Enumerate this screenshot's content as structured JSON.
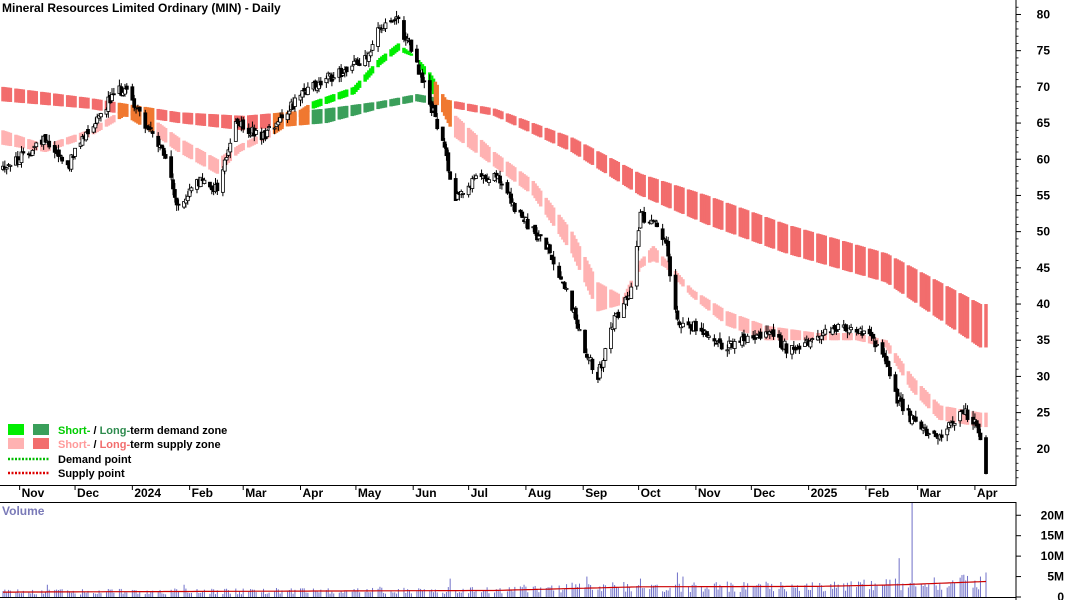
{
  "chart_data": {
    "type": "candlestick",
    "title": "Mineral Resources Limited Ordinary (MIN) - Daily",
    "y_ticks": [
      "80",
      "75",
      "70",
      "65",
      "60",
      "55",
      "50",
      "45",
      "40",
      "35",
      "30",
      "25",
      "20"
    ],
    "ylim": [
      15,
      82
    ],
    "x_labels": [
      "Nov",
      "Dec",
      "2024",
      "Feb",
      "Mar",
      "Apr",
      "May",
      "Jun",
      "Jul",
      "Aug",
      "Sep",
      "Oct",
      "Nov",
      "Dec",
      "2025",
      "Feb",
      "Mar",
      "Apr"
    ],
    "price_path": [
      [
        "2023-10-23",
        59
      ],
      [
        "2023-11-01",
        60
      ],
      [
        "2023-11-15",
        63
      ],
      [
        "2023-11-27",
        59
      ],
      [
        "2023-12-08",
        64
      ],
      [
        "2023-12-19",
        68
      ],
      [
        "2023-12-28",
        70
      ],
      [
        "2024-01-08",
        65
      ],
      [
        "2024-01-19",
        60
      ],
      [
        "2024-01-26",
        53
      ],
      [
        "2024-02-05",
        57
      ],
      [
        "2024-02-16",
        56
      ],
      [
        "2024-02-26",
        65
      ],
      [
        "2024-03-11",
        63
      ],
      [
        "2024-03-25",
        67
      ],
      [
        "2024-04-08",
        70
      ],
      [
        "2024-04-22",
        72
      ],
      [
        "2024-05-06",
        74
      ],
      [
        "2024-05-14",
        78
      ],
      [
        "2024-05-24",
        79
      ],
      [
        "2024-05-31",
        75
      ],
      [
        "2024-06-07",
        70
      ],
      [
        "2024-06-14",
        65
      ],
      [
        "2024-06-24",
        55
      ],
      [
        "2024-07-04",
        57
      ],
      [
        "2024-07-15",
        58
      ],
      [
        "2024-07-29",
        52
      ],
      [
        "2024-08-12",
        48
      ],
      [
        "2024-08-23",
        42
      ],
      [
        "2024-09-02",
        34
      ],
      [
        "2024-09-09",
        30
      ],
      [
        "2024-09-18",
        38
      ],
      [
        "2024-09-27",
        42
      ],
      [
        "2024-10-02",
        52
      ],
      [
        "2024-10-09",
        52
      ],
      [
        "2024-10-16",
        48
      ],
      [
        "2024-10-22",
        38
      ],
      [
        "2024-10-30",
        37
      ],
      [
        "2024-11-07",
        36
      ],
      [
        "2024-11-18",
        34
      ],
      [
        "2024-11-28",
        35
      ],
      [
        "2024-12-09",
        36
      ],
      [
        "2024-12-20",
        34
      ],
      [
        "2025-01-06",
        35
      ],
      [
        "2025-01-16",
        37
      ],
      [
        "2025-01-27",
        36
      ],
      [
        "2025-02-05",
        35
      ],
      [
        "2025-02-12",
        32
      ],
      [
        "2025-02-18",
        27
      ],
      [
        "2025-02-26",
        24
      ],
      [
        "2025-03-06",
        22
      ],
      [
        "2025-03-13",
        22
      ],
      [
        "2025-03-20",
        24
      ],
      [
        "2025-03-27",
        25
      ],
      [
        "2025-04-01",
        24
      ],
      [
        "2025-04-04",
        21
      ],
      [
        "2025-04-07",
        17
      ]
    ],
    "short_term_band": [
      [
        "2023-10-23",
        62,
        64
      ],
      [
        "2023-11-15",
        61,
        62
      ],
      [
        "2023-12-08",
        63,
        64
      ],
      [
        "2023-12-28",
        66,
        67
      ],
      [
        "2024-01-10",
        64,
        66
      ],
      [
        "2024-01-26",
        61,
        63
      ],
      [
        "2024-02-16",
        58,
        60
      ],
      [
        "2024-02-28",
        61,
        62
      ],
      [
        "2024-03-15",
        63,
        64
      ],
      [
        "2024-04-08",
        67,
        68
      ],
      [
        "2024-04-30",
        69,
        70
      ],
      [
        "2024-05-14",
        73,
        74
      ],
      [
        "2024-05-24",
        75,
        76
      ],
      [
        "2024-06-03",
        74,
        74
      ],
      [
        "2024-06-10",
        70,
        72
      ],
      [
        "2024-06-24",
        63,
        66
      ],
      [
        "2024-07-15",
        59,
        61
      ],
      [
        "2024-08-05",
        55,
        57
      ],
      [
        "2024-08-26",
        47,
        50
      ],
      [
        "2024-09-09",
        39,
        43
      ],
      [
        "2024-09-23",
        40,
        41
      ],
      [
        "2024-10-02",
        45,
        46
      ],
      [
        "2024-10-09",
        46,
        48
      ],
      [
        "2024-10-16",
        45,
        46
      ],
      [
        "2024-10-30",
        41,
        42
      ],
      [
        "2024-11-18",
        37,
        39
      ],
      [
        "2024-12-09",
        35,
        37
      ],
      [
        "2025-01-06",
        35,
        36
      ],
      [
        "2025-01-27",
        35,
        36
      ],
      [
        "2025-02-12",
        34,
        35
      ],
      [
        "2025-02-26",
        28,
        30
      ],
      [
        "2025-03-13",
        24,
        26
      ],
      [
        "2025-04-04",
        23,
        25
      ]
    ],
    "long_term_band": [
      [
        "2023-10-23",
        68,
        70
      ],
      [
        "2023-12-08",
        67,
        68.5
      ],
      [
        "2024-01-26",
        65,
        66.5
      ],
      [
        "2024-03-01",
        64,
        66
      ],
      [
        "2024-04-15",
        65,
        67
      ],
      [
        "2024-05-14",
        67,
        68
      ],
      [
        "2024-06-03",
        68,
        69
      ],
      [
        "2024-07-15",
        66,
        67
      ],
      [
        "2024-08-26",
        61,
        63
      ],
      [
        "2024-10-02",
        55,
        58
      ],
      [
        "2024-11-07",
        51,
        55
      ],
      [
        "2024-12-20",
        47,
        51
      ],
      [
        "2025-02-12",
        43,
        47
      ],
      [
        "2025-04-04",
        34,
        40
      ]
    ],
    "volume_y_ticks": [
      "20M",
      "15M",
      "10M",
      "5M",
      "0"
    ],
    "volume_ylim": [
      0,
      23
    ],
    "volume_base_millions": 1.8,
    "volume_spikes_millions": [
      [
        "2023-11-16",
        3
      ],
      [
        "2024-01-29",
        3
      ],
      [
        "2024-05-14",
        2.5
      ],
      [
        "2024-06-21",
        4.5
      ],
      [
        "2024-07-31",
        3
      ],
      [
        "2024-08-26",
        3.5
      ],
      [
        "2024-09-03",
        5
      ],
      [
        "2024-10-02",
        4.5
      ],
      [
        "2024-10-22",
        6
      ],
      [
        "2024-10-25",
        5
      ],
      [
        "2025-02-19",
        9.5
      ],
      [
        "2025-02-26",
        23
      ],
      [
        "2025-04-04",
        5
      ],
      [
        "2025-04-07",
        6
      ]
    ],
    "volume_average_millions": [
      [
        "2023-10-23",
        1.2
      ],
      [
        "2024-03-01",
        1.4
      ],
      [
        "2024-07-15",
        1.6
      ],
      [
        "2024-10-02",
        2.5
      ],
      [
        "2025-01-06",
        2.6
      ],
      [
        "2025-02-20",
        3.0
      ],
      [
        "2025-04-07",
        3.8
      ]
    ],
    "volume_title": "Volume"
  },
  "legend": {
    "row1": {
      "text_a": "Short-",
      "text_b": " / ",
      "text_c": "Long-",
      "text_d": "term demand zone"
    },
    "row2": {
      "text_a": "Short-",
      "text_b": " / ",
      "text_c": "Long-",
      "text_d": "term supply zone"
    },
    "row3": "Demand point",
    "row4": "Supply point"
  },
  "colors": {
    "short_demand": "#00ee00",
    "long_demand": "#3a9f5a",
    "short_supply": "#ffb2b2",
    "long_supply": "#f26d6d",
    "overlap_orange": "#f07830",
    "volume_bar": "#7070c8",
    "volume_average": "#cc0000",
    "demand_point": "#00bb00",
    "supply_point": "#dd0000"
  }
}
